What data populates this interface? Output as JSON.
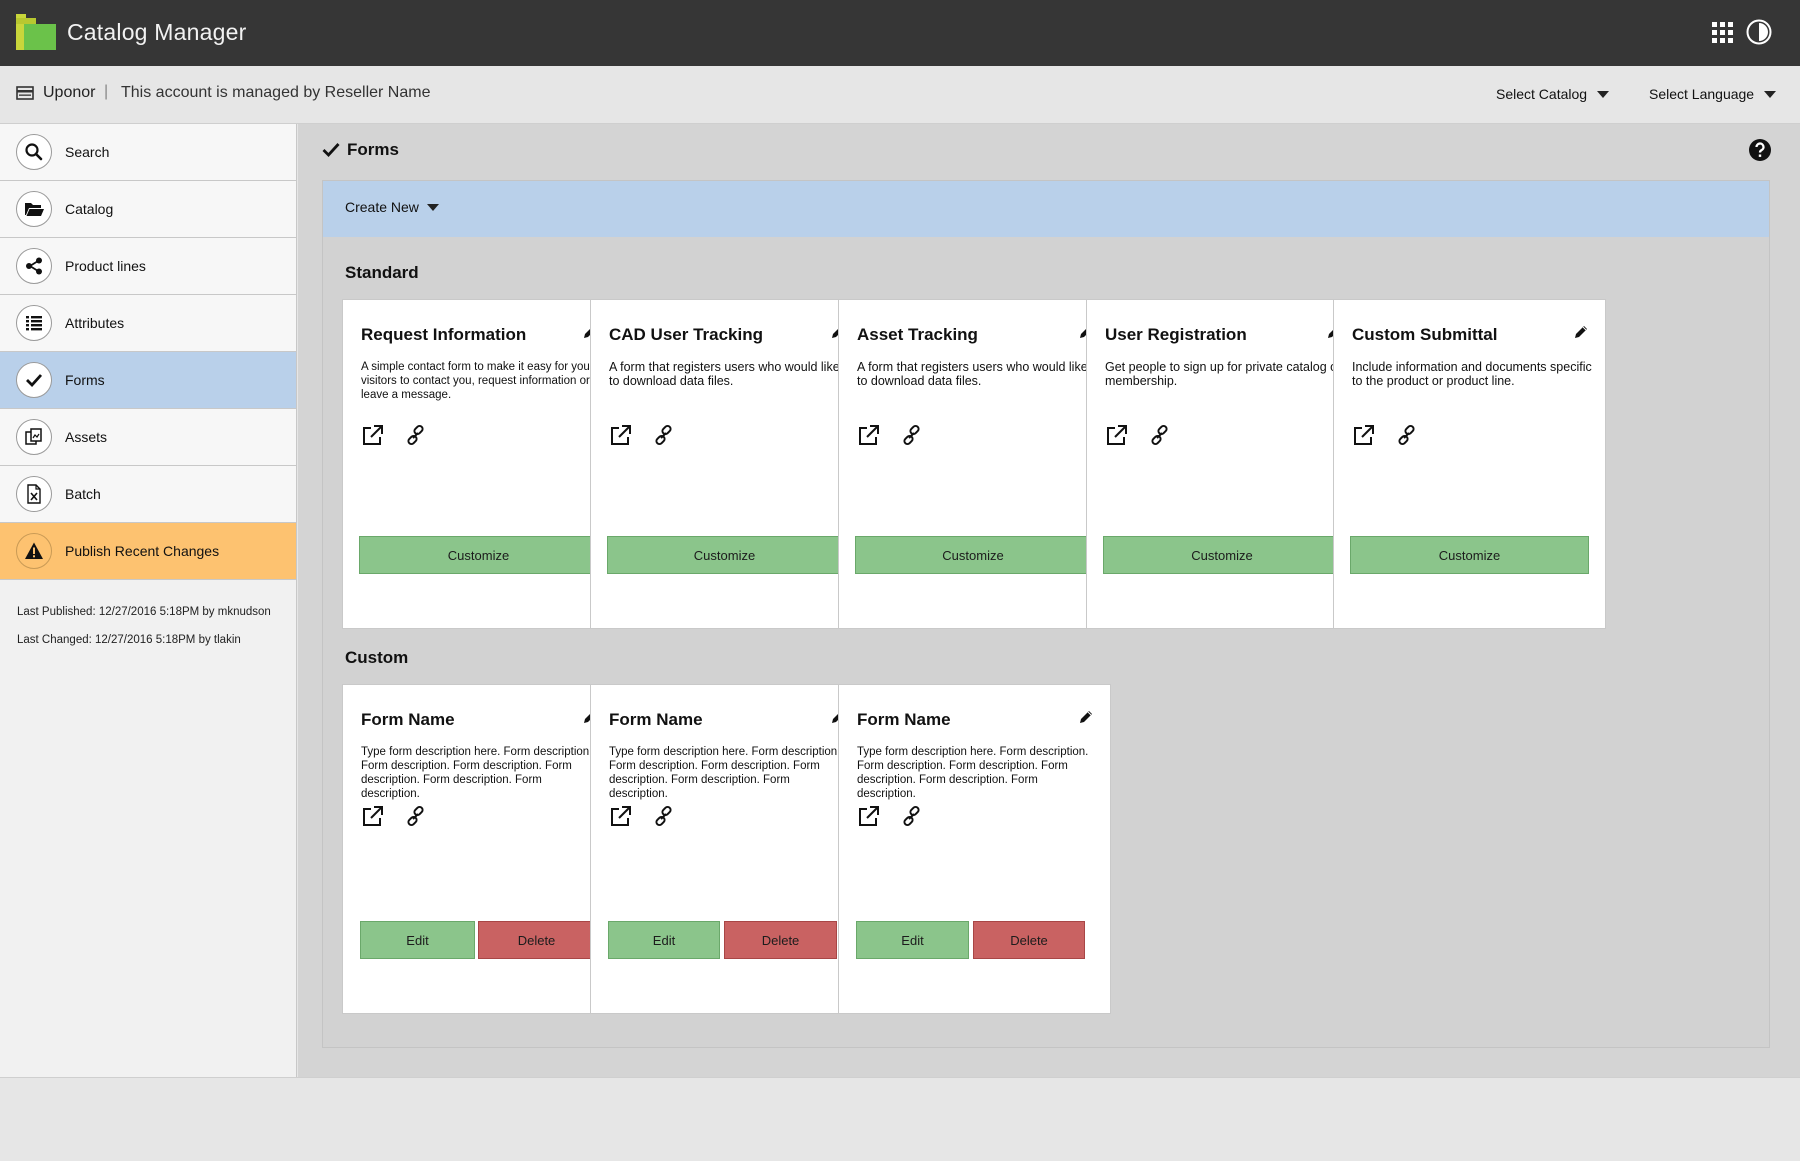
{
  "app": {
    "title": "Catalog Manager"
  },
  "account": {
    "name": "Uponor",
    "separator": "|",
    "note": "This account is managed by Reseller Name",
    "select_catalog": "Select Catalog",
    "select_language": "Select Language"
  },
  "sidebar": {
    "items": [
      {
        "label": "Search",
        "icon": "search-icon"
      },
      {
        "label": "Catalog",
        "icon": "folder-open-icon"
      },
      {
        "label": "Product lines",
        "icon": "share-icon"
      },
      {
        "label": "Attributes",
        "icon": "list-icon"
      },
      {
        "label": "Forms",
        "icon": "check-icon"
      },
      {
        "label": "Assets",
        "icon": "assets-icon"
      },
      {
        "label": "Batch",
        "icon": "excel-file-icon"
      },
      {
        "label": "Publish Recent Changes",
        "icon": "warning-icon"
      }
    ],
    "last_published": "Last Published: 12/27/2016 5:18PM by mknudson",
    "last_changed": "Last Changed: 12/27/2016 5:18PM by tlakin"
  },
  "main": {
    "title": "Forms",
    "create_new": "Create New",
    "standard_title": "Standard",
    "custom_title": "Custom",
    "standard_forms": [
      {
        "title": "Request Information",
        "desc": "A simple contact form to make it easy for your visitors to contact you, request information or leave a message.",
        "button": "Customize"
      },
      {
        "title": "CAD User Tracking",
        "desc": "A form that registers users who would like to download data files.",
        "button": "Customize"
      },
      {
        "title": "Asset Tracking",
        "desc": "A form that registers users who would like to download data files.",
        "button": "Customize"
      },
      {
        "title": "User Registration",
        "desc": "Get people to sign up for private catalog or membership.",
        "button": "Customize"
      },
      {
        "title": "Custom Submittal",
        "desc": "Include information and documents specific to the product or product line.",
        "button": "Customize"
      }
    ],
    "custom_forms": [
      {
        "title": "Form Name",
        "desc": "Type form description here. Form description. Form description. Form description. Form description. Form description. Form description.",
        "edit": "Edit",
        "delete": "Delete"
      },
      {
        "title": "Form Name",
        "desc": "Type form description here. Form description. Form description. Form description. Form description. Form description. Form description.",
        "edit": "Edit",
        "delete": "Delete"
      },
      {
        "title": "Form Name",
        "desc": "Type form description here. Form description. Form description. Form description. Form description. Form description. Form description.",
        "edit": "Edit",
        "delete": "Delete"
      }
    ]
  },
  "colors": {
    "topbar": "#363636",
    "active_nav": "#b9d0ea",
    "publish": "#fdc270",
    "customize_green": "#8bc58b",
    "delete_red": "#c96262"
  }
}
